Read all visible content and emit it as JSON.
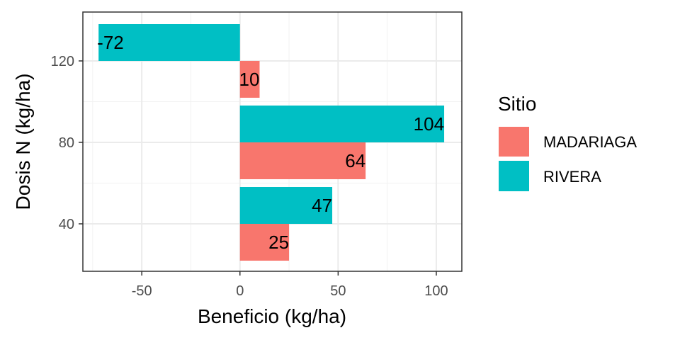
{
  "chart_data": {
    "type": "bar",
    "orientation": "horizontal",
    "xlabel": "Beneficio (kg/ha)",
    "ylabel": "Dosis N (kg/ha)",
    "xlim": [
      -80,
      113
    ],
    "x_ticks": [
      -50,
      0,
      50,
      100
    ],
    "x_tick_labels": [
      "-50",
      "0",
      "50",
      "100"
    ],
    "categories": [
      40,
      80,
      120
    ],
    "category_labels": [
      "40",
      "80",
      "120"
    ],
    "grid": true,
    "legend": {
      "title": "Sitio",
      "position": "right"
    },
    "series": [
      {
        "name": "MADARIAGA",
        "color": "#F8766D",
        "values": [
          25,
          64,
          10
        ],
        "labels": [
          "25",
          "64",
          "10"
        ]
      },
      {
        "name": "RIVERA",
        "color": "#00BFC4",
        "values": [
          47,
          104,
          -72
        ],
        "labels": [
          "47",
          "104",
          "-72"
        ]
      }
    ]
  }
}
